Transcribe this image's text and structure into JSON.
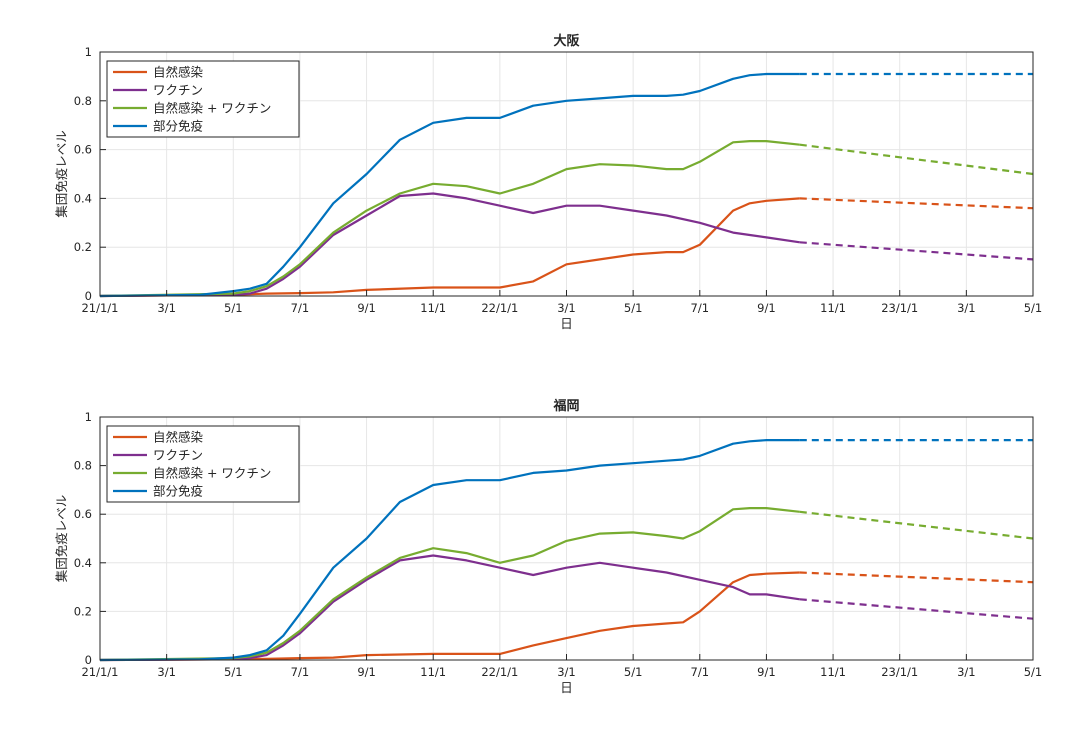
{
  "colors": {
    "natural": "#D95319",
    "vaccine": "#7E2F8E",
    "combined": "#77AC30",
    "partial": "#0072BD"
  },
  "chart_data": [
    {
      "type": "line",
      "title": "大阪",
      "xlabel": "日",
      "ylabel": "集団免疫レベル",
      "xticks": [
        "21/1/1",
        "3/1",
        "5/1",
        "7/1",
        "9/1",
        "11/1",
        "22/1/1",
        "3/1",
        "5/1",
        "7/1",
        "9/1",
        "11/1",
        "23/1/1",
        "3/1",
        "5/1"
      ],
      "yticks": [
        "0",
        "0.2",
        "0.4",
        "0.6",
        "0.8",
        "1"
      ],
      "ylim": [
        0,
        1
      ],
      "xlim_months": [
        0,
        28
      ],
      "grid": true,
      "legend_position": "top-left",
      "projection_start_month": 21,
      "series": [
        {
          "name": "自然感染",
          "color_key": "natural",
          "x": [
            0,
            4,
            5,
            6,
            7,
            8,
            10,
            11,
            11.5,
            12,
            13,
            14,
            15,
            16,
            17,
            17.5,
            18,
            19,
            19.5,
            20,
            21,
            28
          ],
          "y": [
            0,
            0.005,
            0.01,
            0.012,
            0.015,
            0.025,
            0.035,
            0.035,
            0.035,
            0.035,
            0.06,
            0.13,
            0.15,
            0.17,
            0.18,
            0.18,
            0.21,
            0.35,
            0.38,
            0.39,
            0.4,
            0.36
          ]
        },
        {
          "name": "ワクチン",
          "color_key": "vaccine",
          "x": [
            0,
            4,
            4.5,
            5,
            5.5,
            6,
            7,
            8,
            9,
            10,
            11,
            12,
            13,
            14,
            15,
            16,
            17,
            18,
            19,
            19.5,
            20,
            21,
            28
          ],
          "y": [
            0,
            0.005,
            0.01,
            0.03,
            0.07,
            0.12,
            0.25,
            0.33,
            0.41,
            0.42,
            0.4,
            0.37,
            0.34,
            0.37,
            0.37,
            0.35,
            0.33,
            0.3,
            0.26,
            0.25,
            0.24,
            0.22,
            0.15
          ]
        },
        {
          "name": "自然感染 + ワクチン",
          "color_key": "combined",
          "x": [
            0,
            4,
            4.5,
            5,
            5.5,
            6,
            7,
            8,
            9,
            10,
            11,
            12,
            13,
            14,
            15,
            16,
            17,
            17.5,
            18,
            19,
            19.5,
            20,
            21,
            28
          ],
          "y": [
            0,
            0.01,
            0.02,
            0.04,
            0.08,
            0.13,
            0.26,
            0.35,
            0.42,
            0.46,
            0.45,
            0.42,
            0.46,
            0.52,
            0.54,
            0.535,
            0.52,
            0.52,
            0.55,
            0.63,
            0.635,
            0.635,
            0.62,
            0.5
          ]
        },
        {
          "name": "部分免疫",
          "color_key": "partial",
          "x": [
            0,
            3,
            4,
            4.5,
            5,
            5.5,
            6,
            7,
            8,
            9,
            10,
            11,
            11.5,
            12,
            13,
            14,
            15,
            16,
            17,
            17.5,
            18,
            19,
            19.5,
            20,
            21,
            28
          ],
          "y": [
            0,
            0.005,
            0.02,
            0.03,
            0.05,
            0.12,
            0.2,
            0.38,
            0.5,
            0.64,
            0.71,
            0.73,
            0.73,
            0.73,
            0.78,
            0.8,
            0.81,
            0.82,
            0.82,
            0.825,
            0.84,
            0.89,
            0.905,
            0.91,
            0.91,
            0.91
          ]
        }
      ]
    },
    {
      "type": "line",
      "title": "福岡",
      "xlabel": "日",
      "ylabel": "集団免疫レベル",
      "xticks": [
        "21/1/1",
        "3/1",
        "5/1",
        "7/1",
        "9/1",
        "11/1",
        "22/1/1",
        "3/1",
        "5/1",
        "7/1",
        "9/1",
        "11/1",
        "23/1/1",
        "3/1",
        "5/1"
      ],
      "yticks": [
        "0",
        "0.2",
        "0.4",
        "0.6",
        "0.8",
        "1"
      ],
      "ylim": [
        0,
        1
      ],
      "xlim_months": [
        0,
        28
      ],
      "grid": true,
      "legend_position": "top-left",
      "projection_start_month": 21,
      "series": [
        {
          "name": "自然感染",
          "color_key": "natural",
          "x": [
            0,
            4,
            5,
            6,
            7,
            8,
            10,
            11,
            11.5,
            12,
            13,
            14,
            15,
            16,
            17,
            17.5,
            18,
            19,
            19.5,
            20,
            21,
            28
          ],
          "y": [
            0,
            0.003,
            0.005,
            0.008,
            0.01,
            0.02,
            0.025,
            0.025,
            0.025,
            0.025,
            0.06,
            0.09,
            0.12,
            0.14,
            0.15,
            0.155,
            0.2,
            0.32,
            0.35,
            0.355,
            0.36,
            0.32
          ]
        },
        {
          "name": "ワクチン",
          "color_key": "vaccine",
          "x": [
            0,
            4,
            4.5,
            5,
            5.5,
            6,
            7,
            8,
            9,
            10,
            11,
            12,
            13,
            14,
            15,
            16,
            17,
            18,
            19,
            19.5,
            20,
            21,
            28
          ],
          "y": [
            0,
            0.003,
            0.008,
            0.02,
            0.06,
            0.11,
            0.24,
            0.33,
            0.41,
            0.43,
            0.41,
            0.38,
            0.35,
            0.38,
            0.4,
            0.38,
            0.36,
            0.33,
            0.3,
            0.27,
            0.27,
            0.25,
            0.17
          ]
        },
        {
          "name": "自然感染 + ワクチン",
          "color_key": "combined",
          "x": [
            0,
            4,
            4.5,
            5,
            5.5,
            6,
            7,
            8,
            9,
            10,
            11,
            12,
            13,
            14,
            15,
            16,
            17,
            17.5,
            18,
            19,
            19.5,
            20,
            21,
            28
          ],
          "y": [
            0,
            0.008,
            0.015,
            0.03,
            0.07,
            0.12,
            0.25,
            0.34,
            0.42,
            0.46,
            0.44,
            0.4,
            0.43,
            0.49,
            0.52,
            0.525,
            0.51,
            0.5,
            0.53,
            0.62,
            0.625,
            0.625,
            0.61,
            0.5
          ]
        },
        {
          "name": "部分免疫",
          "color_key": "partial",
          "x": [
            0,
            3,
            4,
            4.5,
            5,
            5.5,
            6,
            7,
            8,
            9,
            10,
            11,
            11.5,
            12,
            13,
            14,
            15,
            16,
            17,
            17.5,
            18,
            19,
            19.5,
            20,
            21,
            28
          ],
          "y": [
            0,
            0.003,
            0.01,
            0.02,
            0.04,
            0.1,
            0.19,
            0.38,
            0.5,
            0.65,
            0.72,
            0.74,
            0.74,
            0.74,
            0.77,
            0.78,
            0.8,
            0.81,
            0.82,
            0.825,
            0.84,
            0.89,
            0.9,
            0.905,
            0.905,
            0.905
          ]
        }
      ]
    }
  ]
}
